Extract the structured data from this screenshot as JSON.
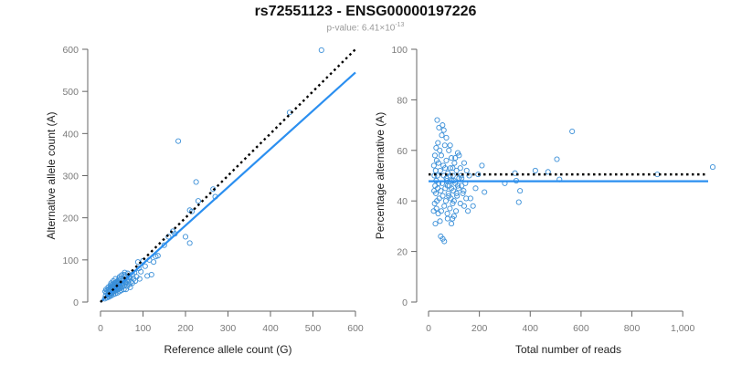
{
  "title": "rs72551123 - ENSG00000197226",
  "subtitle": {
    "prefix": "p-value: 6.41×10",
    "exponent": "-13"
  },
  "colors": {
    "points": "#3a8fd8",
    "fit_line": "#2b8ff0",
    "reference_line": "#000000"
  },
  "chart_data": [
    {
      "type": "scatter",
      "name": "left-panel",
      "xlabel": "Reference allele count (G)",
      "ylabel": "Alternative allele count (A)",
      "xlim": [
        0,
        600
      ],
      "ylim": [
        0,
        600
      ],
      "xticks": [
        0,
        100,
        200,
        300,
        400,
        500,
        600
      ],
      "yticks": [
        0,
        100,
        200,
        300,
        400,
        500,
        600
      ],
      "xtick_labels": [
        "0",
        "100",
        "200",
        "300",
        "400",
        "500",
        "600"
      ],
      "ytick_labels": [
        "0",
        "100",
        "200",
        "300",
        "400",
        "500",
        "600"
      ],
      "fit_line": {
        "x": [
          0,
          600
        ],
        "y": [
          0,
          545
        ]
      },
      "reference_line": {
        "x": [
          0,
          600
        ],
        "y": [
          0,
          600
        ]
      },
      "points": [
        [
          520,
          598
        ],
        [
          445,
          450
        ],
        [
          183,
          382
        ],
        [
          225,
          285
        ],
        [
          210,
          218
        ],
        [
          230,
          240
        ],
        [
          265,
          268
        ],
        [
          215,
          215
        ],
        [
          270,
          250
        ],
        [
          175,
          162
        ],
        [
          170,
          168
        ],
        [
          160,
          155
        ],
        [
          210,
          140
        ],
        [
          200,
          155
        ],
        [
          150,
          135
        ],
        [
          130,
          108
        ],
        [
          120,
          65
        ],
        [
          110,
          62
        ],
        [
          100,
          98
        ],
        [
          95,
          72
        ],
        [
          90,
          80
        ],
        [
          88,
          95
        ],
        [
          85,
          60
        ],
        [
          80,
          70
        ],
        [
          78,
          55
        ],
        [
          75,
          65
        ],
        [
          72,
          48
        ],
        [
          70,
          58
        ],
        [
          68,
          42
        ],
        [
          65,
          52
        ],
        [
          63,
          38
        ],
        [
          60,
          45
        ],
        [
          58,
          62
        ],
        [
          56,
          40
        ],
        [
          55,
          30
        ],
        [
          54,
          50
        ],
        [
          52,
          36
        ],
        [
          50,
          42
        ],
        [
          49,
          28
        ],
        [
          48,
          55
        ],
        [
          47,
          33
        ],
        [
          46,
          46
        ],
        [
          45,
          25
        ],
        [
          44,
          38
        ],
        [
          43,
          52
        ],
        [
          42,
          30
        ],
        [
          41,
          44
        ],
        [
          40,
          22
        ],
        [
          39,
          36
        ],
        [
          38,
          48
        ],
        [
          37,
          27
        ],
        [
          36,
          40
        ],
        [
          35,
          20
        ],
        [
          34,
          32
        ],
        [
          33,
          45
        ],
        [
          32,
          25
        ],
        [
          31,
          38
        ],
        [
          30,
          18
        ],
        [
          29,
          30
        ],
        [
          28,
          42
        ],
        [
          27,
          22
        ],
        [
          26,
          35
        ],
        [
          25,
          15
        ],
        [
          24,
          28
        ],
        [
          23,
          40
        ],
        [
          22,
          20
        ],
        [
          21,
          32
        ],
        [
          20,
          12
        ],
        [
          19,
          25
        ],
        [
          18,
          35
        ],
        [
          17,
          18
        ],
        [
          16,
          28
        ],
        [
          15,
          10
        ],
        [
          14,
          22
        ],
        [
          13,
          30
        ],
        [
          12,
          15
        ],
        [
          11,
          25
        ],
        [
          10,
          8
        ],
        [
          60,
          30
        ],
        [
          64,
          68
        ],
        [
          70,
          35
        ],
        [
          75,
          45
        ],
        [
          82,
          50
        ],
        [
          92,
          55
        ],
        [
          105,
          85
        ],
        [
          115,
          100
        ],
        [
          125,
          95
        ],
        [
          135,
          110
        ],
        [
          55,
          65
        ],
        [
          45,
          60
        ],
        [
          35,
          55
        ],
        [
          30,
          50
        ],
        [
          25,
          45
        ],
        [
          62,
          52
        ],
        [
          66,
          58
        ],
        [
          58,
          48
        ],
        [
          52,
          44
        ],
        [
          48,
          38
        ],
        [
          42,
          34
        ],
        [
          38,
          28
        ],
        [
          34,
          26
        ],
        [
          30,
          24
        ],
        [
          26,
          20
        ],
        [
          22,
          16
        ],
        [
          18,
          14
        ],
        [
          40,
          50
        ],
        [
          44,
          56
        ],
        [
          50,
          64
        ],
        [
          57,
          70
        ],
        [
          36,
          46
        ],
        [
          32,
          42
        ],
        [
          28,
          38
        ],
        [
          24,
          34
        ],
        [
          20,
          30
        ]
      ]
    },
    {
      "type": "scatter",
      "name": "right-panel",
      "xlabel": "Total number of reads",
      "ylabel": "Percentage alternative (A)",
      "xlim": [
        0,
        1100
      ],
      "ylim": [
        0,
        100
      ],
      "xticks": [
        0,
        200,
        400,
        600,
        800,
        1000
      ],
      "yticks": [
        0,
        20,
        40,
        60,
        80,
        100
      ],
      "xtick_labels": [
        "0",
        "200",
        "400",
        "600",
        "800",
        "1,000"
      ],
      "ytick_labels": [
        "0",
        "20",
        "40",
        "60",
        "80",
        "100"
      ],
      "fit_line": {
        "x": [
          0,
          1100
        ],
        "y": [
          47.8,
          47.8
        ]
      },
      "reference_line": {
        "x": [
          0,
          1100
        ],
        "y": [
          50.5,
          50.5
        ]
      },
      "points": [
        [
          1118,
          53.4
        ],
        [
          900,
          50.5
        ],
        [
          565,
          67.5
        ],
        [
          515,
          48.5
        ],
        [
          505,
          56.5
        ],
        [
          470,
          51.5
        ],
        [
          420,
          52
        ],
        [
          355,
          39.5
        ],
        [
          360,
          44
        ],
        [
          345,
          48
        ],
        [
          340,
          51
        ],
        [
          300,
          47
        ],
        [
          220,
          43.5
        ],
        [
          210,
          54
        ],
        [
          195,
          50.5
        ],
        [
          185,
          45
        ],
        [
          175,
          38
        ],
        [
          165,
          41
        ],
        [
          155,
          36
        ],
        [
          150,
          52
        ],
        [
          145,
          47
        ],
        [
          140,
          55
        ],
        [
          135,
          43
        ],
        [
          130,
          49
        ],
        [
          125,
          39
        ],
        [
          120,
          58
        ],
        [
          115,
          46
        ],
        [
          112,
          42
        ],
        [
          110,
          52
        ],
        [
          108,
          36
        ],
        [
          105,
          47
        ],
        [
          102,
          55
        ],
        [
          100,
          40
        ],
        [
          98,
          44
        ],
        [
          96,
          50
        ],
        [
          94,
          33
        ],
        [
          92,
          48
        ],
        [
          90,
          57
        ],
        [
          88,
          41
        ],
        [
          86,
          53
        ],
        [
          84,
          37
        ],
        [
          82,
          46
        ],
        [
          80,
          60
        ],
        [
          78,
          43
        ],
        [
          76,
          51
        ],
        [
          74,
          35
        ],
        [
          72,
          48
        ],
        [
          70,
          56
        ],
        [
          68,
          40
        ],
        [
          66,
          45
        ],
        [
          64,
          62
        ],
        [
          62,
          38
        ],
        [
          60,
          50
        ],
        [
          58,
          54
        ],
        [
          56,
          42
        ],
        [
          54,
          47
        ],
        [
          52,
          66
        ],
        [
          50,
          36
        ],
        [
          50,
          58
        ],
        [
          48,
          44
        ],
        [
          46,
          52
        ],
        [
          45,
          32
        ],
        [
          44,
          60
        ],
        [
          42,
          41
        ],
        [
          41,
          69
        ],
        [
          40,
          47
        ],
        [
          39,
          55
        ],
        [
          38,
          35
        ],
        [
          37,
          63
        ],
        [
          36,
          45
        ],
        [
          35,
          50
        ],
        [
          34,
          72
        ],
        [
          33,
          40
        ],
        [
          32,
          56
        ],
        [
          31,
          37
        ],
        [
          30,
          48
        ],
        [
          30,
          61
        ],
        [
          29,
          43
        ],
        [
          28,
          52
        ],
        [
          27,
          31
        ],
        [
          26,
          46
        ],
        [
          25,
          58
        ],
        [
          24,
          39
        ],
        [
          23,
          50
        ],
        [
          22,
          44
        ],
        [
          21,
          54
        ],
        [
          20,
          36
        ],
        [
          56,
          25
        ],
        [
          62,
          24
        ],
        [
          48,
          26
        ],
        [
          90,
          31
        ],
        [
          75,
          33
        ],
        [
          100,
          34
        ],
        [
          85,
          62
        ],
        [
          70,
          65
        ],
        [
          60,
          68
        ],
        [
          55,
          70
        ],
        [
          115,
          59
        ],
        [
          125,
          53
        ],
        [
          140,
          38
        ],
        [
          160,
          50
        ],
        [
          95,
          39
        ],
        [
          105,
          57
        ],
        [
          118,
          45
        ],
        [
          128,
          50
        ],
        [
          138,
          44
        ],
        [
          148,
          41
        ],
        [
          65,
          53
        ],
        [
          70,
          49
        ],
        [
          75,
          46
        ],
        [
          80,
          42
        ],
        [
          85,
          50
        ],
        [
          90,
          45
        ],
        [
          95,
          53
        ],
        [
          100,
          48
        ],
        [
          110,
          43
        ],
        [
          120,
          49
        ],
        [
          130,
          46
        ]
      ]
    }
  ]
}
